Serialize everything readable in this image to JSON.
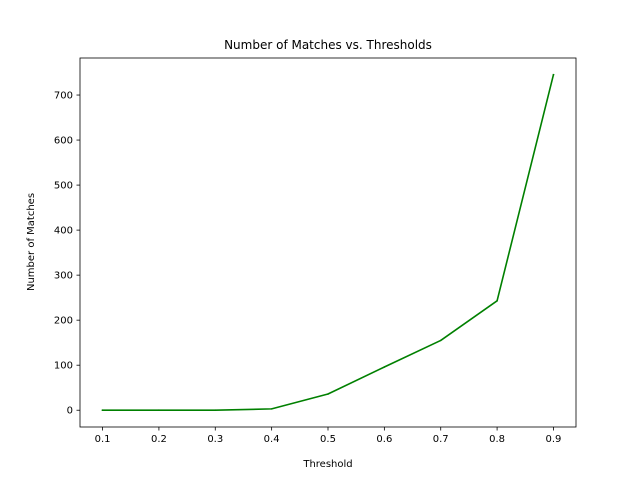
{
  "chart_data": {
    "type": "line",
    "title": "Number of Matches vs. Thresholds",
    "xlabel": "Threshold",
    "ylabel": "Number of Matches",
    "x": [
      0.1,
      0.2,
      0.3,
      0.4,
      0.5,
      0.6,
      0.7,
      0.8,
      0.9
    ],
    "series": [
      {
        "values": [
          0,
          0,
          0,
          3,
          36,
          96,
          155,
          243,
          745
        ],
        "color": "#008000"
      }
    ],
    "xticks": [
      "0.1",
      "0.2",
      "0.3",
      "0.4",
      "0.5",
      "0.6",
      "0.7",
      "0.8",
      "0.9"
    ],
    "yticks": [
      "0",
      "100",
      "200",
      "300",
      "400",
      "500",
      "600",
      "700"
    ],
    "xlim": [
      0.06,
      0.94
    ],
    "ylim": [
      -37.25,
      782.25
    ],
    "grid": false
  }
}
